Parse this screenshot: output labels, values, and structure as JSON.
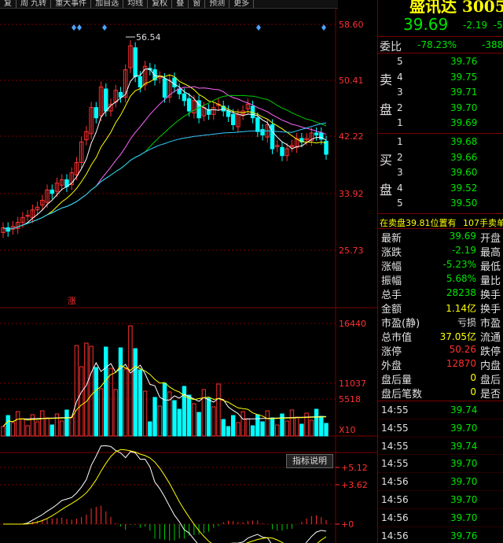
{
  "toolbar": {
    "items": [
      "复",
      "周 九转",
      "重大事件",
      "加自选",
      "均线",
      "复权",
      "叠",
      "窗",
      "预测",
      "更多"
    ]
  },
  "kline": {
    "y_labels": [
      "58.60",
      "50.41",
      "42.22",
      "33.92",
      "25.73"
    ],
    "high_label": "56.54",
    "zhang_mark": "涨",
    "colors": {
      "up": "#ff3030",
      "down": "#00ffff",
      "ma5": "#ffffff",
      "ma10": "#ffff00",
      "ma20": "#ff66ff",
      "ma30": "#00cc00",
      "ma60": "#33ccff"
    }
  },
  "volume": {
    "y_labels": [
      "16440",
      "11037",
      "5518"
    ],
    "unit": "X10"
  },
  "macd": {
    "y_labels": [
      "+5.12",
      "+3.62",
      "+0"
    ],
    "button": "指标说明"
  },
  "quote": {
    "name": "盛讯达 3005",
    "price": "39.69",
    "change": "-2.19",
    "change_pct": "-5",
    "weibi_label": "委比",
    "weibi_value": "-78.23%",
    "weicha_value": "-388",
    "sell_label": [
      "卖",
      "盘"
    ],
    "buy_label": [
      "买",
      "盘"
    ],
    "asks": [
      {
        "level": "5",
        "price": "39.76"
      },
      {
        "level": "4",
        "price": "39.75"
      },
      {
        "level": "3",
        "price": "39.71"
      },
      {
        "level": "2",
        "price": "39.70"
      },
      {
        "level": "1",
        "price": "39.69"
      }
    ],
    "bids": [
      {
        "level": "1",
        "price": "39.68"
      },
      {
        "level": "2",
        "price": "39.66"
      },
      {
        "level": "3",
        "price": "39.60"
      },
      {
        "level": "4",
        "price": "39.52"
      },
      {
        "level": "5",
        "price": "39.50"
      }
    ],
    "banner": "在卖盘39.81位置有",
    "banner_qty": "107手",
    "banner_tail": "卖单"
  },
  "stats": [
    {
      "label": "最新",
      "value": "39.69",
      "color": "green",
      "label2": "开盘"
    },
    {
      "label": "涨跌",
      "value": "-2.19",
      "color": "green",
      "label2": "最高"
    },
    {
      "label": "涨幅",
      "value": "-5.23%",
      "color": "green",
      "label2": "最低"
    },
    {
      "label": "振幅",
      "value": "5.68%",
      "color": "green",
      "label2": "量比"
    },
    {
      "label": "总手",
      "value": "28238",
      "color": "green",
      "label2": "换手"
    },
    {
      "label": "金额",
      "value": "1.14亿",
      "color": "yellow",
      "label2": "换手"
    },
    {
      "label": "市盈(静)",
      "value": "亏损",
      "color": "white",
      "label2": "市盈"
    },
    {
      "label": "总市值",
      "value": "37.05亿",
      "color": "yellow",
      "label2": "流通"
    },
    {
      "label": "涨停",
      "value": "50.26",
      "color": "red",
      "label2": "跌停"
    },
    {
      "label": "外盘",
      "value": "12870",
      "color": "red",
      "label2": "内盘"
    },
    {
      "label": "盘后量",
      "value": "0",
      "color": "yellow",
      "label2": "盘后"
    },
    {
      "label": "盘后笔数",
      "value": "0",
      "color": "yellow",
      "label2": "是否"
    }
  ],
  "ticks": [
    {
      "time": "14:55",
      "price": "39.74"
    },
    {
      "time": "14:55",
      "price": "39.70"
    },
    {
      "time": "14:55",
      "price": "39.74"
    },
    {
      "time": "14:55",
      "price": "39.70"
    },
    {
      "time": "14:56",
      "price": "39.70"
    },
    {
      "time": "14:56",
      "price": "39.70"
    },
    {
      "time": "14:56",
      "price": "39.70"
    },
    {
      "time": "14:56",
      "price": "39.76"
    },
    {
      "time": "14:56",
      "price": "39.70"
    }
  ]
}
